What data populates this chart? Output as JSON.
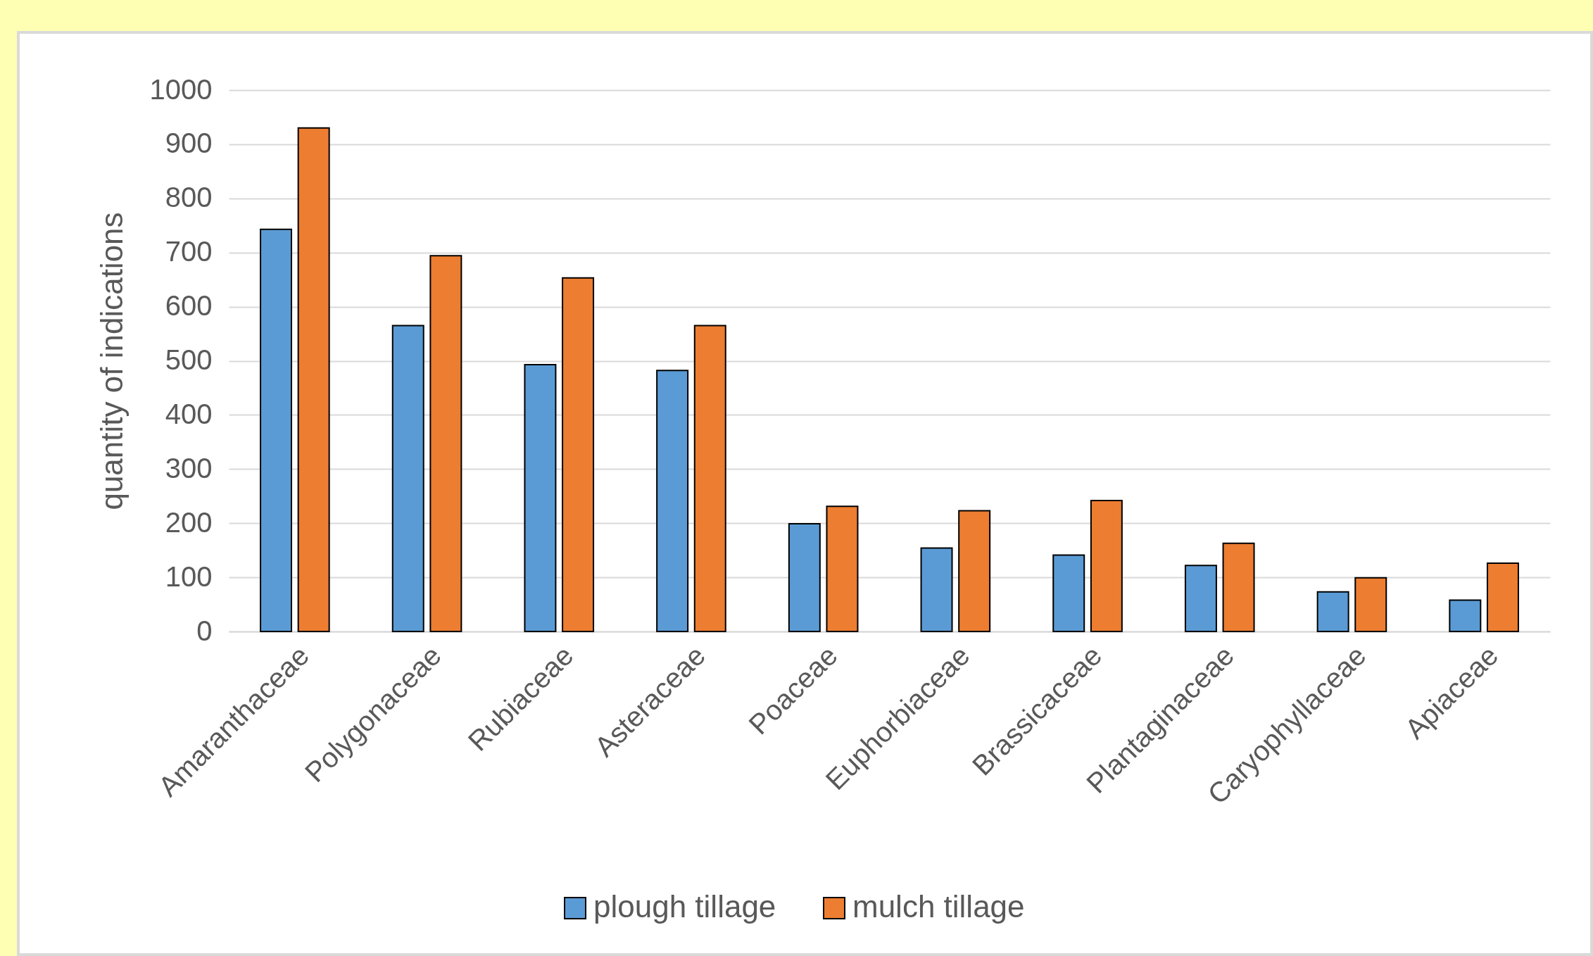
{
  "chart_data": {
    "type": "bar",
    "ylabel": "quantity of indications",
    "categories": [
      "Amaranthaceae",
      "Polygonaceae",
      "Rubiaceae",
      "Asteraceae",
      "Poaceae",
      "Euphorbiaceae",
      "Brassicaceae",
      "Plantaginaceae",
      "Caryophyllaceae",
      "Apiaceae"
    ],
    "series": [
      {
        "name": "plough tillage",
        "color": "#5b9bd5",
        "values": [
          743,
          565,
          493,
          482,
          199,
          154,
          141,
          122,
          73,
          58
        ]
      },
      {
        "name": "mulch tillage",
        "color": "#ed7d31",
        "values": [
          930,
          694,
          653,
          565,
          231,
          223,
          242,
          163,
          99,
          126
        ]
      }
    ],
    "ylim": [
      0,
      1000
    ],
    "yticks": [
      0,
      100,
      200,
      300,
      400,
      500,
      600,
      700,
      800,
      900,
      1000
    ],
    "grid": "y",
    "legend": "bottom"
  }
}
